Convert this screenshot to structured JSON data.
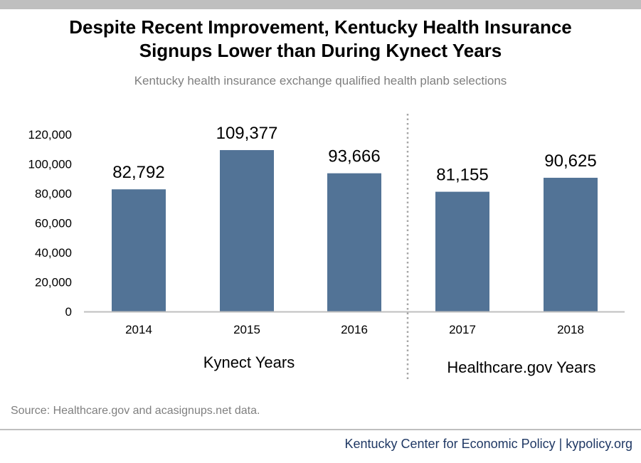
{
  "title_line1": "Despite Recent Improvement, Kentucky Health Insurance",
  "title_line2": "Signups Lower than During Kynect Years",
  "subtitle": "Kentucky health insurance exchange qualified health planb selections",
  "source": "Source: Healthcare.gov and acasignups.net data.",
  "footer": "Kentucky Center for Economic Policy | kypolicy.org",
  "colors": {
    "bar": "#527396",
    "axis": "#bfbfbf",
    "divider": "#a6a6a6",
    "footer": "#1f3864",
    "muted_text": "#7f7f7f"
  },
  "chart_data": {
    "type": "bar",
    "title": "Despite Recent Improvement, Kentucky Health Insurance Signups Lower than During Kynect Years",
    "subtitle": "Kentucky health insurance exchange qualified health planb selections",
    "categories": [
      "2014",
      "2015",
      "2016",
      "2017",
      "2018"
    ],
    "values": [
      82792,
      109377,
      93666,
      81155,
      90625
    ],
    "value_labels": [
      "82,792",
      "109,377",
      "93,666",
      "81,155",
      "90,625"
    ],
    "yticks": [
      0,
      20000,
      40000,
      60000,
      80000,
      100000,
      120000
    ],
    "ytick_labels": [
      "0",
      "20,000",
      "40,000",
      "60,000",
      "80,000",
      "100,000",
      "120,000"
    ],
    "ylim": [
      0,
      120000
    ],
    "xlabel": "",
    "ylabel": "",
    "grid": false,
    "legend": "none",
    "groups": [
      {
        "label": "Kynect Years",
        "categories": [
          "2014",
          "2015",
          "2016"
        ]
      },
      {
        "label": "Healthcare.gov Years",
        "categories": [
          "2017",
          "2018"
        ]
      }
    ]
  }
}
